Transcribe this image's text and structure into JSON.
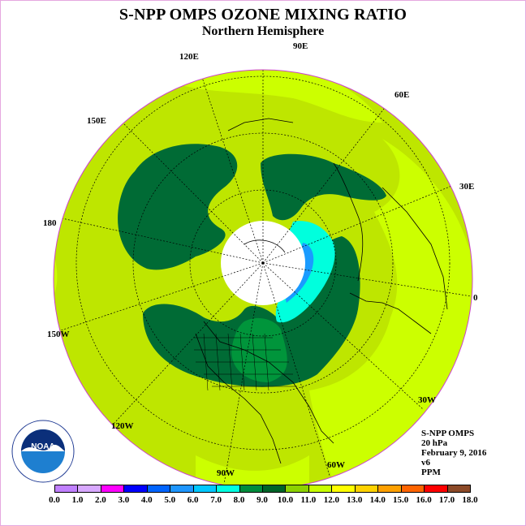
{
  "title": "S-NPP OMPS OZONE MIXING RATIO",
  "subtitle": "Northern Hemisphere",
  "longitude_labels": [
    "90E",
    "60E",
    "30E",
    "0",
    "30W",
    "60W",
    "90W",
    "120W",
    "150W",
    "180",
    "150E",
    "120E"
  ],
  "info": {
    "instrument": "S-NPP OMPS",
    "level": "20 hPa",
    "date": "February 9, 2016",
    "version": "v6",
    "units": "PPM"
  },
  "logo_text": "NOAA",
  "colorbar": {
    "colors": [
      "#c080ff",
      "#d8a8ff",
      "#ff00ff",
      "#0000ff",
      "#0064ff",
      "#1e96ff",
      "#00c8ff",
      "#00ffe0",
      "#008c3c",
      "#006428",
      "#8cd200",
      "#c8ff00",
      "#ffff00",
      "#ffd200",
      "#ffa000",
      "#ff6400",
      "#ff0000",
      "#8c4a28"
    ],
    "labels": [
      "0.0",
      "1.0",
      "2.0",
      "3.0",
      "4.0",
      "5.0",
      "6.0",
      "7.0",
      "8.0",
      "9.0",
      "10.0",
      "11.0",
      "12.0",
      "13.0",
      "14.0",
      "15.0",
      "16.0",
      "17.0",
      "18.0"
    ]
  },
  "colors": {
    "background_field": "#bee600",
    "low_value_field": "#ccff00",
    "high_value_field": "#006b35",
    "mid_value_field": "#00953b",
    "cyan_field": "#00ffdd",
    "blue_field": "#1a9bff",
    "no_data": "#ffffff"
  }
}
